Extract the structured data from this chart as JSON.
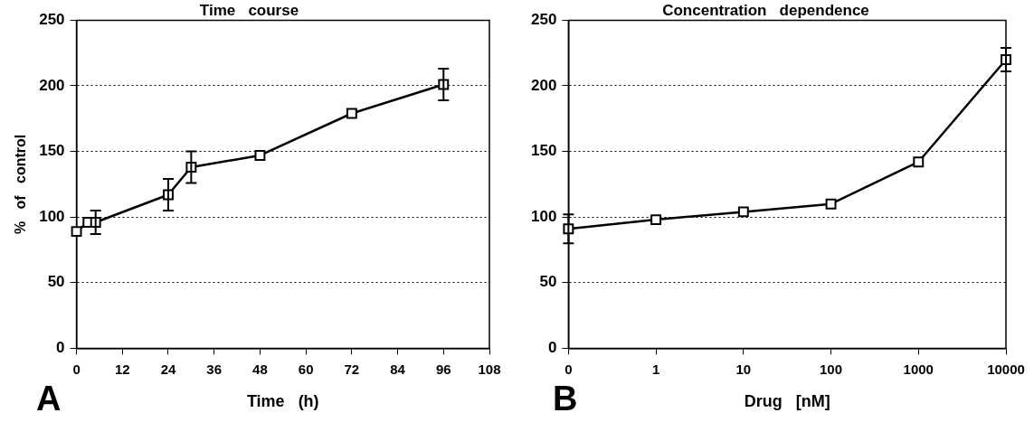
{
  "chart_data": [
    {
      "type": "line",
      "title": "Time   course",
      "xlabel": "Time   (h)",
      "ylabel": "%   of   control",
      "x": [
        0,
        3,
        5,
        24,
        30,
        48,
        72,
        96
      ],
      "series": [
        {
          "color": "#000000",
          "values": [
            89,
            96,
            96,
            117,
            138,
            147,
            179,
            201
          ],
          "errors": [
            null,
            null,
            9,
            12,
            12,
            null,
            null,
            12
          ]
        }
      ],
      "xlim": [
        0,
        108
      ],
      "xticks": [
        0,
        12,
        24,
        36,
        48,
        60,
        72,
        84,
        96,
        108
      ],
      "ylim": [
        0,
        250
      ],
      "yticks": [
        0,
        50,
        100,
        150,
        200,
        250
      ],
      "grid": "y",
      "marker": "square",
      "line_style": "solid",
      "legend": false,
      "annotations": [
        "A"
      ]
    },
    {
      "type": "line",
      "title": "Concentration   dependence",
      "xlabel": "Drug   [nM]",
      "x": [
        0.1,
        1,
        10,
        100,
        1000,
        10000
      ],
      "series": [
        {
          "color": "#000000",
          "values": [
            91,
            98,
            104,
            110,
            142,
            220
          ],
          "errors": [
            11,
            null,
            null,
            null,
            null,
            9
          ]
        }
      ],
      "log": "x",
      "xlim": [
        0.1,
        10000
      ],
      "xticks": [
        {
          "value": 0.1,
          "label": "0"
        },
        1,
        10,
        100,
        1000,
        10000
      ],
      "ylim": [
        0,
        250
      ],
      "yticks": [
        0,
        50,
        100,
        150,
        200,
        250
      ],
      "grid": "y",
      "marker": "square",
      "line_style": "solid",
      "legend": false,
      "annotations": [
        "B"
      ]
    }
  ]
}
